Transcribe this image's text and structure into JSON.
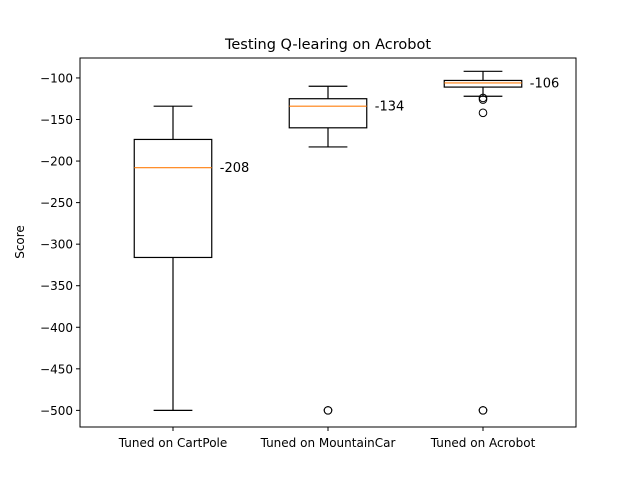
{
  "chart_data": {
    "type": "box",
    "title": "Testing Q-learing on Acrobot",
    "xlabel": "",
    "ylabel": "Score",
    "ylim": [
      -520,
      -76
    ],
    "yticks": [
      -100,
      -150,
      -200,
      -250,
      -300,
      -350,
      -400,
      -450,
      -500
    ],
    "grid": false,
    "colors": {
      "box": "#000000",
      "median": "#ff7f0e"
    },
    "categories": [
      "Tuned on CartPole",
      "Tuned on MountainCar",
      "Tuned on Acrobot"
    ],
    "boxes": [
      {
        "label": "Tuned on CartPole",
        "whisker_low": -500,
        "q1": -316,
        "median": -208,
        "q3": -174,
        "whisker_high": -134,
        "outliers": [],
        "annotation": "-208"
      },
      {
        "label": "Tuned on MountainCar",
        "whisker_low": -183,
        "q1": -160,
        "median": -134,
        "q3": -125,
        "whisker_high": -110,
        "outliers": [
          -500,
          -500
        ],
        "annotation": "-134"
      },
      {
        "label": "Tuned on Acrobot",
        "whisker_low": -122,
        "q1": -111,
        "median": -106,
        "q3": -103,
        "whisker_high": -92,
        "outliers": [
          -124,
          -126,
          -142,
          -500,
          -500
        ],
        "annotation": "-106"
      }
    ]
  }
}
